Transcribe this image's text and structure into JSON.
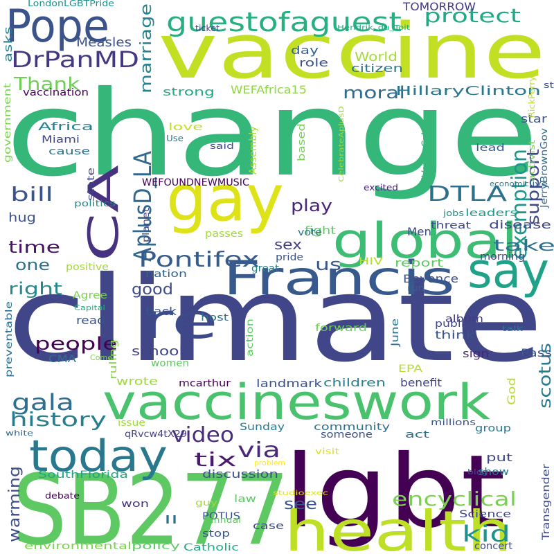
{
  "words": [
    {
      "text": "change",
      "color": "#35b779"
    },
    {
      "text": "climate",
      "color": "#404688"
    },
    {
      "text": "vaccine",
      "color": "#c2df23"
    },
    {
      "text": "lgbt",
      "color": "#440154"
    },
    {
      "text": "SB277",
      "color": "#5ec962"
    },
    {
      "text": "vaccineswork",
      "color": "#4ac16d"
    },
    {
      "text": "Francis",
      "color": "#38598c"
    },
    {
      "text": "health",
      "color": "#bddf26"
    },
    {
      "text": "gay",
      "color": "#dde318"
    },
    {
      "text": "global",
      "color": "#3dbc74"
    },
    {
      "text": "today",
      "color": "#2a788e"
    },
    {
      "text": "Pope",
      "color": "#3b528b"
    },
    {
      "text": "say",
      "color": "#1fa287"
    },
    {
      "text": "re",
      "color": "#3e4989"
    },
    {
      "text": "CA",
      "color": "#46327e"
    },
    {
      "text": "guestofaguest",
      "color": "#29af7f"
    },
    {
      "text": "DrPanMD",
      "color": "#453781"
    },
    {
      "text": "AplusD_LA",
      "color": "#31688e"
    },
    {
      "text": "Pontifex",
      "color": "#365c8d"
    },
    {
      "text": "DTLA",
      "color": "#2d708e"
    },
    {
      "text": "video",
      "color": "#472d7b"
    },
    {
      "text": "gala",
      "color": "#2e6e8e"
    },
    {
      "text": "history",
      "color": "#287d8e"
    },
    {
      "text": "exemption",
      "color": "#1f968b"
    },
    {
      "text": "support",
      "color": "#3f4889"
    },
    {
      "text": "encyclical",
      "color": "#7ad151"
    },
    {
      "text": "tix",
      "color": "#481b6d"
    },
    {
      "text": "kid",
      "color": "#21918c"
    },
    {
      "text": "via",
      "color": "#482878"
    },
    {
      "text": "bill",
      "color": "#3b528b"
    },
    {
      "text": "protect",
      "color": "#22a884"
    },
    {
      "text": "marriage",
      "color": "#26828e"
    },
    {
      "text": "Thank",
      "color": "#6ece58"
    },
    {
      "text": "people",
      "color": "#440154"
    },
    {
      "text": "right",
      "color": "#23898e"
    },
    {
      "text": "time",
      "color": "#481467"
    },
    {
      "text": "good",
      "color": "#3e4a89"
    },
    {
      "text": "us",
      "color": "#38588c"
    },
    {
      "text": "sex",
      "color": "#433e85"
    },
    {
      "text": "play",
      "color": "#482677"
    },
    {
      "text": "take",
      "color": "#2c718e"
    },
    {
      "text": "scotus",
      "color": "#287c8e"
    },
    {
      "text": "warming",
      "color": "#3e4c8a"
    },
    {
      "text": "see",
      "color": "#3a538b"
    },
    {
      "text": "moral",
      "color": "#306a8e"
    },
    {
      "text": "HillaryClinton",
      "color": "#2a778e"
    },
    {
      "text": "Measles",
      "color": "#3b528b"
    },
    {
      "text": "TOMORROW",
      "color": "#443983"
    },
    {
      "text": "LondonLGBTPride",
      "color": "#21908d"
    },
    {
      "text": "World",
      "color": "#a5db36"
    },
    {
      "text": "citizen",
      "color": "#2a778e"
    },
    {
      "text": "role",
      "color": "#3b528b"
    },
    {
      "text": "day",
      "color": "#34618d"
    },
    {
      "text": "study",
      "color": "#3e4c8a"
    },
    {
      "text": "asks",
      "color": "#287d8e"
    },
    {
      "text": "vaccination",
      "color": "#440154"
    },
    {
      "text": "government",
      "color": "#7ad151"
    },
    {
      "text": "strong",
      "color": "#22a884"
    },
    {
      "text": "WEFAfrica15",
      "color": "#8fd744"
    },
    {
      "text": "CelebrateAplusD",
      "color": "#a0da39"
    },
    {
      "text": "star",
      "color": "#3b528b"
    },
    {
      "text": "Africa",
      "color": "#27808e"
    },
    {
      "text": "Miami",
      "color": "#404688"
    },
    {
      "text": "cause",
      "color": "#2d718e"
    },
    {
      "text": "love",
      "color": "#bddf26"
    },
    {
      "text": "Use",
      "color": "#2a778e"
    },
    {
      "text": "said",
      "color": "#3e4c8a"
    },
    {
      "text": "Assembly",
      "color": "#a8db34"
    },
    {
      "text": "based",
      "color": "#75d054"
    },
    {
      "text": "iVouqzCzHl",
      "color": "#35b779"
    },
    {
      "text": "lead",
      "color": "#34608d"
    },
    {
      "text": "activist",
      "color": "#7ad151"
    },
    {
      "text": "RickPerry",
      "color": "#bddf26"
    },
    {
      "text": "JerryBrownGov",
      "color": "#2f6c8e"
    },
    {
      "text": "economic",
      "color": "#2a788e"
    },
    {
      "text": "live",
      "color": "#31678e"
    },
    {
      "text": "WEFOUNDNEWMUSIC",
      "color": "#440154"
    },
    {
      "text": "state",
      "color": "#414487"
    },
    {
      "text": "excited",
      "color": "#482475"
    },
    {
      "text": "politics",
      "color": "#228d8d"
    },
    {
      "text": "planet",
      "color": "#404688"
    },
    {
      "text": "fight",
      "color": "#5ec962"
    },
    {
      "text": "Men",
      "color": "#3e4989"
    },
    {
      "text": "leaders",
      "color": "#1e9b8a"
    },
    {
      "text": "jobs",
      "color": "#21918c"
    },
    {
      "text": "hug",
      "color": "#3b528b"
    },
    {
      "text": "passes",
      "color": "#a0da39"
    },
    {
      "text": "threat",
      "color": "#3e4a89"
    },
    {
      "text": "disease",
      "color": "#3f4788"
    },
    {
      "text": "vote",
      "color": "#2a788e"
    },
    {
      "text": "one",
      "color": "#2d708e"
    },
    {
      "text": "positive",
      "color": "#a2da37"
    },
    {
      "text": "nation",
      "color": "#33628d"
    },
    {
      "text": "pride",
      "color": "#3b528b"
    },
    {
      "text": "great",
      "color": "#287c8e"
    },
    {
      "text": "HIV",
      "color": "#b5de2b"
    },
    {
      "text": "report",
      "color": "#5ec962"
    },
    {
      "text": "morning",
      "color": "#414487"
    },
    {
      "text": "Agree",
      "color": "#7ad151"
    },
    {
      "text": "back",
      "color": "#3a548c"
    },
    {
      "text": "host",
      "color": "#2e6e8e"
    },
    {
      "text": "Beyonce",
      "color": "#3b528b"
    },
    {
      "text": "run",
      "color": "#32658e"
    },
    {
      "text": "album",
      "color": "#443983"
    },
    {
      "text": "Capital",
      "color": "#27ad81"
    },
    {
      "text": "preventable",
      "color": "#2d708e"
    },
    {
      "text": "read",
      "color": "#3a538b"
    },
    {
      "text": "action",
      "color": "#5ec962"
    },
    {
      "text": "forward",
      "color": "#6ece58"
    },
    {
      "text": "June",
      "color": "#2c718e"
    },
    {
      "text": "public",
      "color": "#3e4989"
    },
    {
      "text": "think",
      "color": "#3b528b"
    },
    {
      "text": "talk",
      "color": "#2a788e"
    },
    {
      "text": "school",
      "color": "#414487"
    },
    {
      "text": "sign",
      "color": "#482677"
    },
    {
      "text": "Pass",
      "color": "#3b528b"
    },
    {
      "text": "CMA",
      "color": "#2d708e"
    },
    {
      "text": "women",
      "color": "#5ec962"
    },
    {
      "text": "ruling",
      "color": "#86d549"
    },
    {
      "text": "Come",
      "color": "#7ad151"
    },
    {
      "text": "EPA",
      "color": "#b5de2b"
    },
    {
      "text": "wrote",
      "color": "#a0da39"
    },
    {
      "text": "mcarthur",
      "color": "#440154"
    },
    {
      "text": "landmark",
      "color": "#3b528b"
    },
    {
      "text": "children",
      "color": "#26828e"
    },
    {
      "text": "benefit",
      "color": "#414487"
    },
    {
      "text": "God",
      "color": "#b5de2b"
    },
    {
      "text": "issue",
      "color": "#a0da39"
    },
    {
      "text": "Sunday",
      "color": "#287c8e"
    },
    {
      "text": "community",
      "color": "#2d708e"
    },
    {
      "text": "millions",
      "color": "#3b528b"
    },
    {
      "text": "group",
      "color": "#2a788e"
    },
    {
      "text": "white",
      "color": "#31688e"
    },
    {
      "text": "qRvcw4tX29",
      "color": "#414487"
    },
    {
      "text": "someone",
      "color": "#3b528b"
    },
    {
      "text": "act",
      "color": "#2d708e"
    },
    {
      "text": "visit",
      "color": "#dde318"
    },
    {
      "text": "problem",
      "color": "#fde725"
    },
    {
      "text": "put",
      "color": "#414487"
    },
    {
      "text": "blog",
      "color": "#3e4989"
    },
    {
      "text": "show",
      "color": "#2a788e"
    },
    {
      "text": "SouthFlorida",
      "color": "#20a386"
    },
    {
      "text": "discussion",
      "color": "#3b528b"
    },
    {
      "text": "Transgender",
      "color": "#3e4989"
    },
    {
      "text": "won",
      "color": "#46337f"
    },
    {
      "text": "debate",
      "color": "#440154"
    },
    {
      "text": "guy",
      "color": "#a0da39"
    },
    {
      "text": "studioexec",
      "color": "#dde318"
    },
    {
      "text": "Science",
      "color": "#414487"
    },
    {
      "text": "law",
      "color": "#5ec962"
    },
    {
      "text": "POTUS",
      "color": "#3b528b"
    },
    {
      "text": "annual",
      "color": "#5ec962"
    },
    {
      "text": "case",
      "color": "#3e4a89"
    },
    {
      "text": "ll",
      "color": "#2d708e"
    },
    {
      "text": "stop",
      "color": "#39568c"
    },
    {
      "text": "environmental",
      "color": "#7ad151"
    },
    {
      "text": "policy",
      "color": "#5ec962"
    },
    {
      "text": "Catholic",
      "color": "#22a884"
    },
    {
      "text": "concert",
      "color": "#3e4989"
    },
    {
      "text": "ticket",
      "color": "#414487"
    },
    {
      "text": "Hendrik_du_Toit",
      "color": "#22a884"
    }
  ]
}
